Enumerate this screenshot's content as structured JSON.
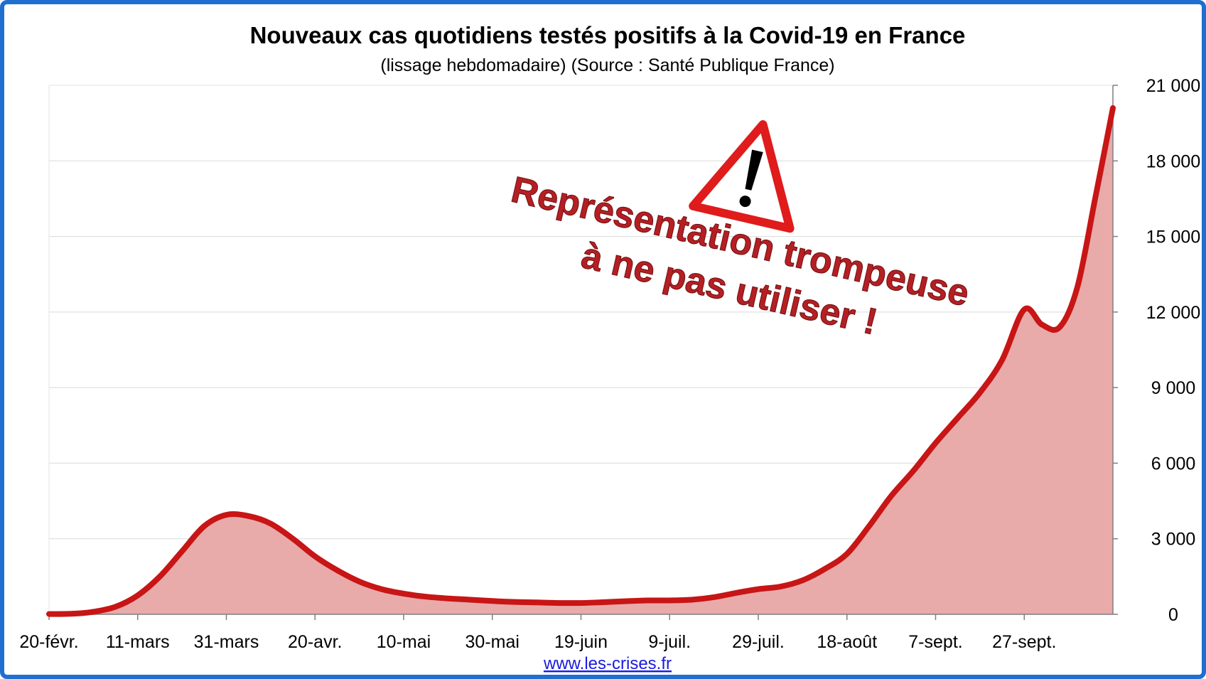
{
  "chart_data": {
    "type": "area",
    "title": "Nouveaux cas quotidiens testés positifs à la Covid-19 en France",
    "subtitle": "(lissage hebdomadaire) (Source : Santé Publique France)",
    "xlabel": "",
    "ylabel": "",
    "ylim": [
      0,
      21000
    ],
    "y_ticks": [
      0,
      3000,
      6000,
      9000,
      12000,
      15000,
      18000,
      21000
    ],
    "y_tick_labels": [
      "0",
      "3 000",
      "6 000",
      "9 000",
      "12 000",
      "15 000",
      "18 000",
      "21 000"
    ],
    "x_tick_labels": [
      "20-févr.",
      "11-mars",
      "31-mars",
      "20-avr.",
      "10-mai",
      "30-mai",
      "19-juin",
      "9-juil.",
      "29-juil.",
      "18-août",
      "7-sept.",
      "27-sept."
    ],
    "x_tick_days": [
      0,
      20,
      40,
      60,
      80,
      100,
      120,
      140,
      160,
      180,
      200,
      220
    ],
    "x_days": [
      0,
      5,
      10,
      15,
      20,
      25,
      30,
      35,
      40,
      45,
      50,
      55,
      60,
      65,
      70,
      75,
      80,
      85,
      90,
      95,
      100,
      105,
      110,
      115,
      120,
      125,
      130,
      135,
      140,
      145,
      150,
      155,
      160,
      165,
      170,
      175,
      180,
      185,
      190,
      195,
      200,
      205,
      210,
      215,
      220,
      224,
      228,
      232,
      236,
      240
    ],
    "values": [
      10,
      20,
      100,
      300,
      750,
      1500,
      2500,
      3500,
      3950,
      3900,
      3600,
      3000,
      2300,
      1750,
      1300,
      1000,
      820,
      700,
      630,
      580,
      530,
      490,
      470,
      450,
      450,
      480,
      520,
      550,
      550,
      580,
      680,
      850,
      1000,
      1100,
      1350,
      1800,
      2400,
      3500,
      4700,
      5700,
      6800,
      7800,
      8800,
      10100,
      12100,
      11500,
      11400,
      13000,
      16500,
      20100
    ],
    "series_color": "#c81515",
    "fill_color": "#e9aaaa",
    "grid": true,
    "y_axis_side": "right"
  },
  "annotation": {
    "line1": "Représentation trompeuse",
    "line2": "à ne pas utiliser !",
    "icon": "warning-icon"
  },
  "source_link": "www.les-crises.fr"
}
